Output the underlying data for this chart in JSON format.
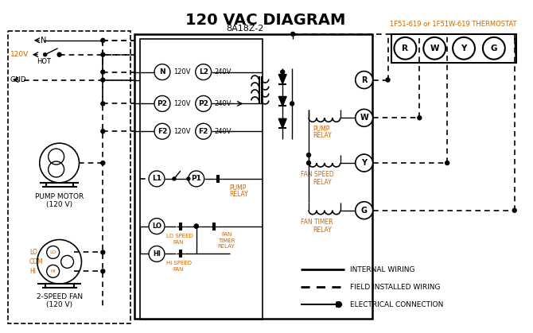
{
  "title": "120 VAC DIAGRAM",
  "title_fontsize": 14,
  "bg_color": "#ffffff",
  "line_color": "#000000",
  "orange_color": "#CC6600",
  "thermostat_label": "1F51-619 or 1F51W-619 THERMOSTAT",
  "controller_label": "8A18Z-2"
}
